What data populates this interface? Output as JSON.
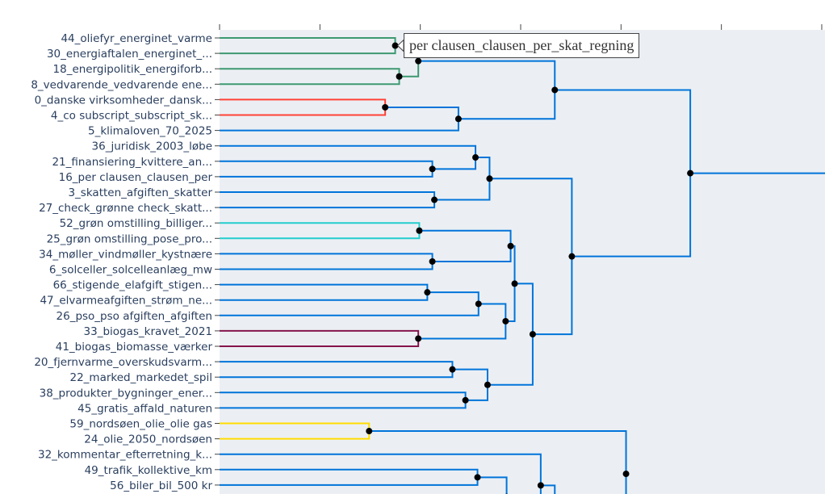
{
  "chart_data": {
    "type": "dendrogram",
    "orientation": "left",
    "x_unit": "axis tick intervals (tick labels not visible)",
    "x_ticks": [
      0,
      1,
      2,
      3,
      4,
      5,
      6
    ],
    "background": "#ebeff4",
    "colors": {
      "green": "#3d9970",
      "red": "#ff4136",
      "cyan": "#23cdcd",
      "maroon": "#85144b",
      "yellow": "#ffdc00",
      "blue": "#0074d9"
    },
    "leaves": [
      "44_oliefyr_energinet_varme",
      "30_energiaftalen_energinet_...",
      "18_energipolitik_energiforb...",
      "8_vedvarende_vedvarende ene...",
      "0_danske virksomheder_dansk...",
      "4_co subscript_subscript_sk...",
      "5_klimaloven_70_2025",
      "36_juridisk_2003_løbe",
      "21_finansiering_kvittere_an...",
      "16_per clausen_clausen_per",
      "3_skatten_afgiften_skatter",
      "27_check_grønne check_skatt...",
      "52_grøn omstilling_billiger...",
      "25_grøn omstilling_pose_pro...",
      "34_møller_vindmøller_kystnære",
      "6_solceller_solcelleanlæg_mw",
      "66_stigende_elafgift_stigen...",
      "47_elvarmeafgiften_strøm_ne...",
      "26_pso_pso afgiften_afgiften",
      "33_biogas_kravet_2021",
      "41_biogas_biomasse_værker",
      "20_fjernvarme_overskudsvarm...",
      "22_marked_markedet_spil",
      "38_produkter_bygninger_ener...",
      "45_gratis_affald_naturen",
      "59_nordsøen_olie_olie gas",
      "24_olie_2050_nordsøen",
      "32_kommentar_efterretning_k...",
      "49_trafik_kollektive_km",
      "56_biler_bil_500 kr"
    ],
    "links": [
      {
        "id": "A",
        "x": 1.75,
        "children": [
          "L0",
          "L1"
        ],
        "color": "green"
      },
      {
        "id": "B",
        "x": 1.79,
        "children": [
          "L2",
          "L3"
        ],
        "color": "green"
      },
      {
        "id": "C",
        "x": 1.98,
        "children": [
          "A",
          "B"
        ],
        "color": "green"
      },
      {
        "id": "D",
        "x": 1.65,
        "children": [
          "L4",
          "L5"
        ],
        "color": "red"
      },
      {
        "id": "E",
        "x": 2.38,
        "children": [
          "D",
          "L6"
        ],
        "color": "blue"
      },
      {
        "id": "F",
        "x": 3.34,
        "children": [
          "C",
          "E"
        ],
        "color": "blue"
      },
      {
        "id": "G",
        "x": 2.12,
        "children": [
          "L8",
          "L9"
        ],
        "color": "blue"
      },
      {
        "id": "H",
        "x": 2.55,
        "children": [
          "L7",
          "G"
        ],
        "color": "blue"
      },
      {
        "id": "I",
        "x": 2.14,
        "children": [
          "L10",
          "L11"
        ],
        "color": "blue"
      },
      {
        "id": "J",
        "x": 2.69,
        "children": [
          "H",
          "I"
        ],
        "color": "blue"
      },
      {
        "id": "K",
        "x": 1.99,
        "children": [
          "L12",
          "L13"
        ],
        "color": "cyan"
      },
      {
        "id": "Lk",
        "x": 2.12,
        "children": [
          "L14",
          "L15"
        ],
        "color": "blue"
      },
      {
        "id": "M",
        "x": 2.9,
        "children": [
          "K",
          "Lk"
        ],
        "color": "blue"
      },
      {
        "id": "N",
        "x": 2.07,
        "children": [
          "L16",
          "L17"
        ],
        "color": "blue"
      },
      {
        "id": "O",
        "x": 2.58,
        "children": [
          "N",
          "L18"
        ],
        "color": "blue"
      },
      {
        "id": "P",
        "x": 1.98,
        "children": [
          "L19",
          "L20"
        ],
        "color": "maroon"
      },
      {
        "id": "Q",
        "x": 2.85,
        "children": [
          "O",
          "P"
        ],
        "color": "blue"
      },
      {
        "id": "R",
        "x": 2.94,
        "children": [
          "M",
          "Q"
        ],
        "color": "blue"
      },
      {
        "id": "S",
        "x": 2.32,
        "children": [
          "L21",
          "L22"
        ],
        "color": "blue"
      },
      {
        "id": "T",
        "x": 2.45,
        "children": [
          "L23",
          "L24"
        ],
        "color": "blue"
      },
      {
        "id": "U",
        "x": 2.67,
        "children": [
          "S",
          "T"
        ],
        "color": "blue"
      },
      {
        "id": "V",
        "x": 3.12,
        "children": [
          "R",
          "U"
        ],
        "color": "blue"
      },
      {
        "id": "W",
        "x": 3.51,
        "children": [
          "J",
          "V"
        ],
        "color": "blue"
      },
      {
        "id": "X",
        "x": 4.69,
        "children": [
          "F",
          "W"
        ],
        "color": "blue"
      },
      {
        "id": "Root",
        "x": 6.3,
        "children": [
          "X",
          "below"
        ],
        "color": "blue"
      },
      {
        "id": "Y",
        "x": 1.49,
        "children": [
          "L25",
          "L26"
        ],
        "color": "yellow"
      },
      {
        "id": "Yp",
        "x": 4.05,
        "children": [
          "Y",
          "below"
        ],
        "color": "blue"
      },
      {
        "id": "Z",
        "x": 2.57,
        "children": [
          "L28",
          "L29"
        ],
        "color": "blue"
      },
      {
        "id": "Zp",
        "x": 2.86,
        "children": [
          "Z",
          "below"
        ],
        "color": "blue"
      },
      {
        "id": "Z2",
        "x": 3.2,
        "children": [
          "L27",
          "below"
        ],
        "color": "blue"
      },
      {
        "id": "Z2p",
        "x": 3.34,
        "children": [
          "Z2",
          "below"
        ],
        "color": "blue"
      }
    ],
    "hover": {
      "node": "A",
      "text": "per clausen_clausen_per_skat_regning"
    }
  }
}
